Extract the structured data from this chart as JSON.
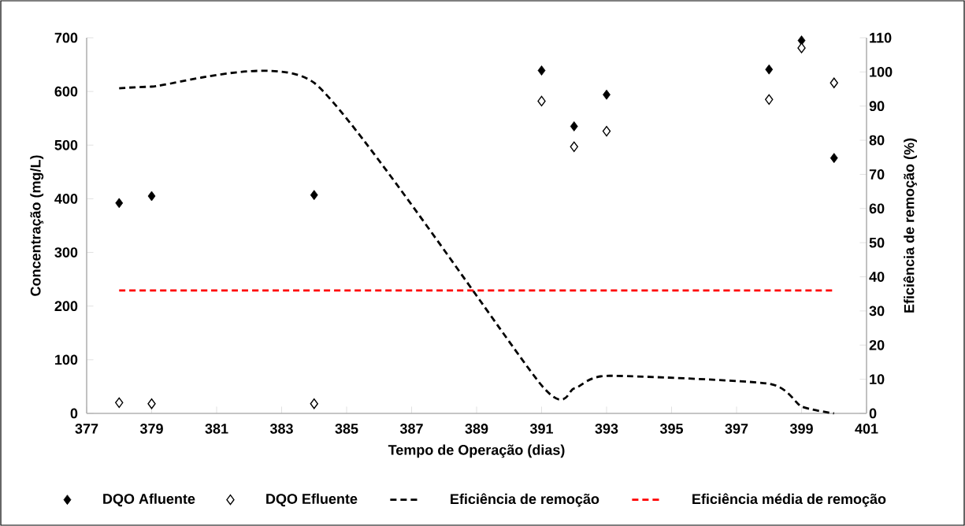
{
  "chart_data": {
    "type": "scatter",
    "xlabel": "Tempo de Operação (dias)",
    "ylabel": "Concentração (mg/L)",
    "y2label": "Eficiência de remoção (%)",
    "xlim": [
      377,
      401
    ],
    "xticks": [
      377,
      379,
      381,
      383,
      385,
      387,
      389,
      391,
      393,
      395,
      397,
      399,
      401
    ],
    "ylim": [
      0,
      700
    ],
    "yticks": [
      0,
      100,
      200,
      300,
      400,
      500,
      600,
      700
    ],
    "y2lim": [
      0,
      110
    ],
    "y2ticks": [
      0,
      10,
      20,
      30,
      40,
      50,
      60,
      70,
      80,
      90,
      100,
      110
    ],
    "grid": false,
    "legend": "bottom",
    "series": [
      {
        "name": "DQO Afluente",
        "marker": "diamond",
        "color": "#000000",
        "x": [
          378,
          379,
          384,
          391,
          392,
          393,
          398,
          399,
          400
        ],
        "values": [
          392,
          405,
          407,
          639,
          535,
          594,
          641,
          695,
          476
        ]
      },
      {
        "name": "DQO Efluente",
        "marker": "diamond",
        "color": "#000000",
        "x": [
          378,
          379,
          384,
          391,
          392,
          393,
          398,
          399,
          400
        ],
        "values": [
          20,
          18,
          18,
          582,
          497,
          526,
          585,
          681,
          616
        ]
      },
      {
        "name": "Eficiência de remoção",
        "type": "line",
        "axis": "y2",
        "line_style": "dashed",
        "marker": "none",
        "color": "#000000",
        "x": [
          378,
          379,
          384,
          391,
          392,
          393,
          398,
          399,
          400
        ],
        "values": [
          95.2,
          95.7,
          96.8,
          8.2,
          7.3,
          11.0,
          8.7,
          2.0,
          0
        ]
      },
      {
        "name": "Eficiência média de remoção",
        "type": "line",
        "axis": "y2",
        "line_style": "dashed",
        "marker": "none",
        "color": "#ff0000",
        "x": [
          378,
          400
        ],
        "values": [
          36,
          36
        ]
      }
    ]
  }
}
